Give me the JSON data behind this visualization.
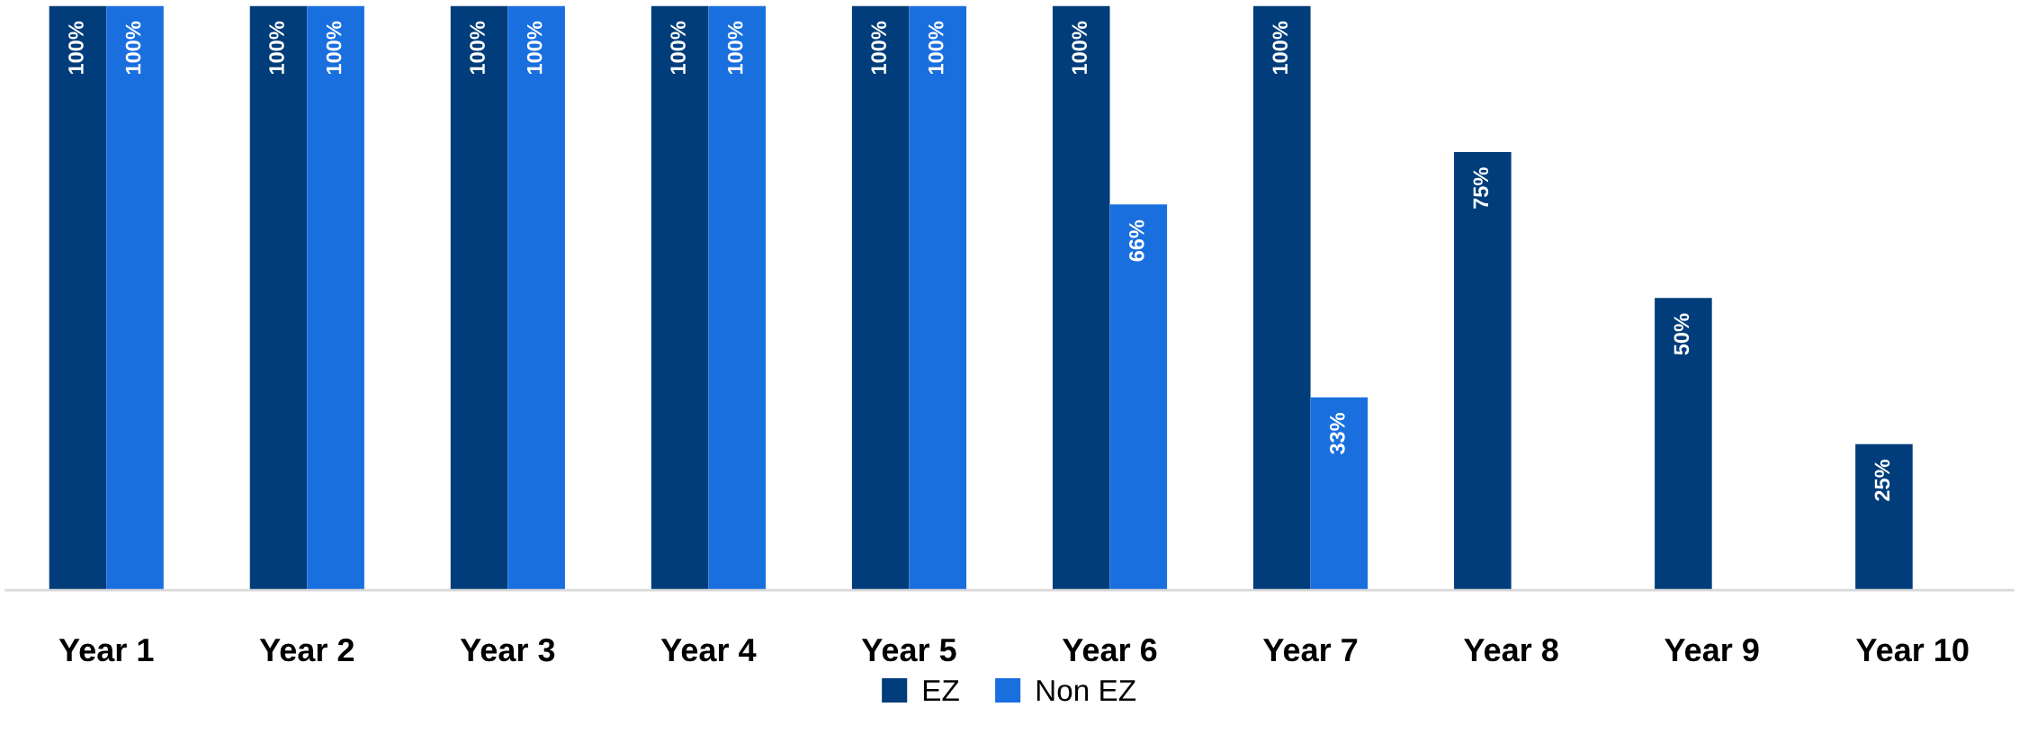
{
  "chart_data": {
    "type": "bar",
    "categories": [
      "Year 1",
      "Year 2",
      "Year 3",
      "Year 4",
      "Year 5",
      "Year 6",
      "Year 7",
      "Year 8",
      "Year 9",
      "Year 10"
    ],
    "series": [
      {
        "name": "EZ",
        "color": "#003d7a",
        "values": [
          100,
          100,
          100,
          100,
          100,
          100,
          100,
          75,
          50,
          25
        ],
        "value_labels": [
          "100%",
          "100%",
          "100%",
          "100%",
          "100%",
          "100%",
          "100%",
          "75%",
          "50%",
          "25%"
        ]
      },
      {
        "name": "Non EZ",
        "color": "#1a6fdf",
        "values": [
          100,
          100,
          100,
          100,
          100,
          66,
          33,
          null,
          null,
          null
        ],
        "value_labels": [
          "100%",
          "100%",
          "100%",
          "100%",
          "100%",
          "66%",
          "33%",
          null,
          null,
          null
        ]
      }
    ],
    "legend": "bottom"
  }
}
